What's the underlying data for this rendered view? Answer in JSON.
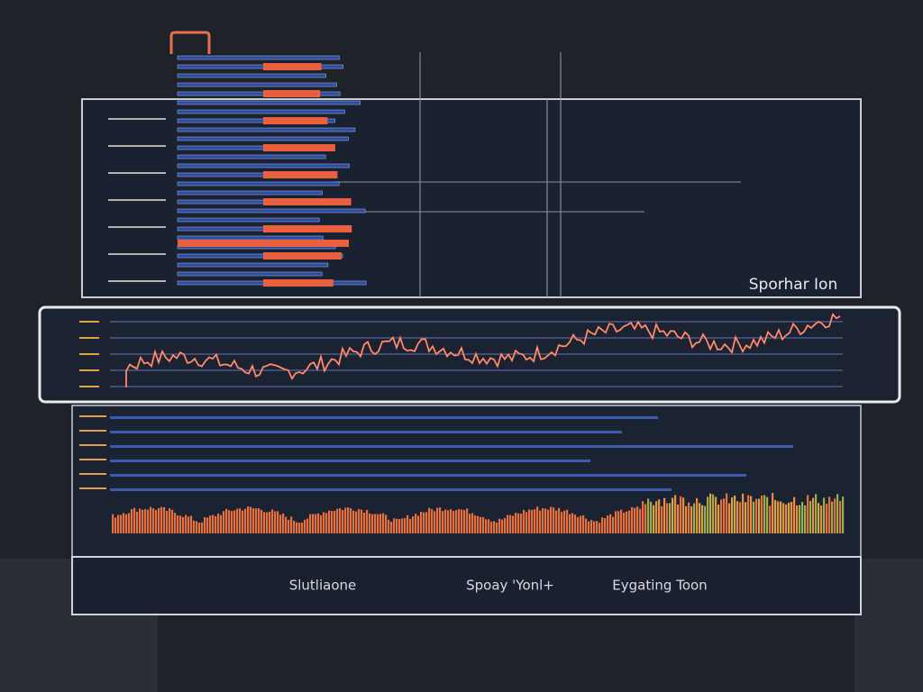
{
  "panel": {
    "label": "Sporhar Ion"
  },
  "footer": {
    "labels": [
      "Slutliaone",
      "Spoay 'Yonl+",
      "Eygating Toon"
    ]
  }
}
